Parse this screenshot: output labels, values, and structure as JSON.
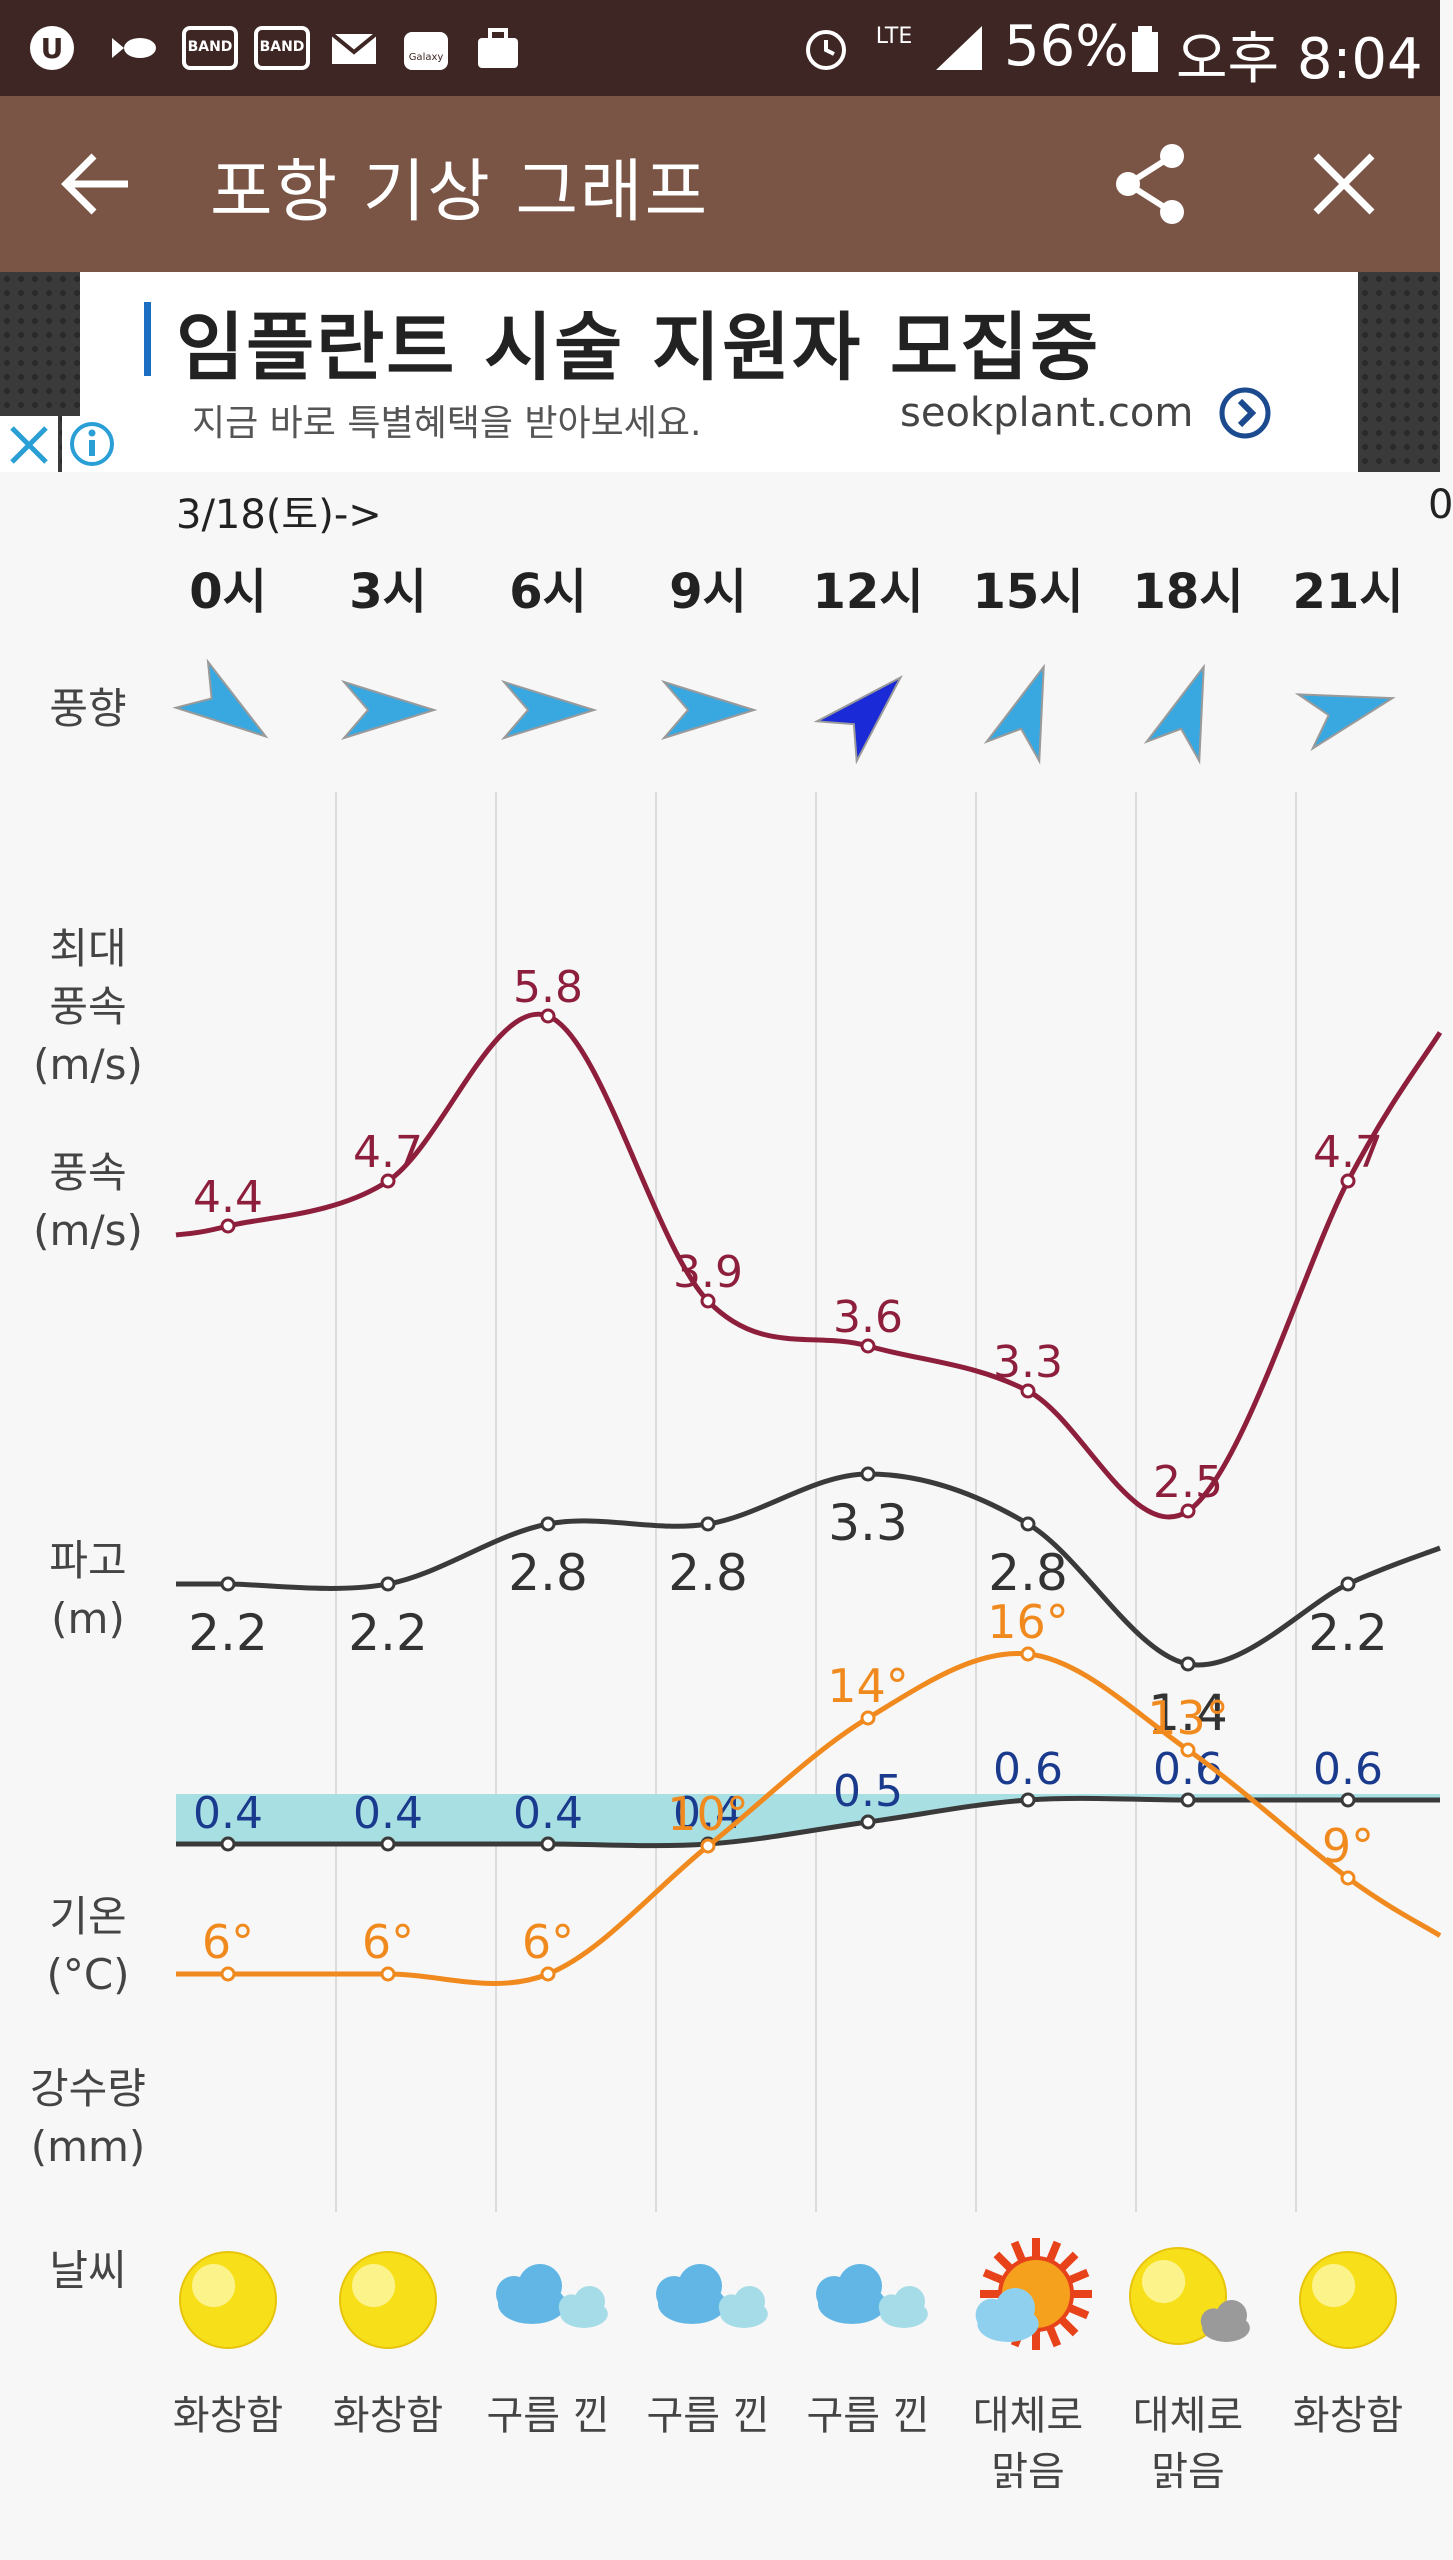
{
  "status_bar": {
    "battery_percent": "56%",
    "time": "오후 8:04",
    "network": "LTE",
    "band_label": "BAND",
    "galaxy_label": "Galaxy"
  },
  "app_bar": {
    "title": "포항 기상 그래프"
  },
  "ad": {
    "headline": "임플란트 시술 지원자 모집중",
    "subtext": "지금 바로 특별혜택을 받아보세요.",
    "domain": "seokplant.com"
  },
  "row_labels": {
    "wind_direction": "풍향",
    "max_wind": [
      "최대",
      "풍속",
      "(m/s)"
    ],
    "wind": [
      "풍속",
      "(m/s)"
    ],
    "wave": [
      "파고",
      "(m)"
    ],
    "temperature": [
      "기온",
      "(°C)"
    ],
    "precip": [
      "강수량",
      "(mm)"
    ],
    "weather": "날씨"
  },
  "colors": {
    "max_wind": "#8e1f3c",
    "wind": "#3a3a3a",
    "wave_fill": "#a8dfe3",
    "wave_label": "#1a3a8e",
    "temperature": "#f08a1e",
    "appbar": "#7a5546",
    "statusbar": "#3d2623"
  },
  "chart_data": {
    "type": "line",
    "date_label": "3/18(토)->",
    "next_date_partial": "0",
    "hours": [
      "0시",
      "3시",
      "6시",
      "9시",
      "12시",
      "15시",
      "18시",
      "21시"
    ],
    "wind_direction_icons": [
      "arrow-icon",
      "arrow-icon",
      "arrow-icon",
      "arrow-icon",
      "arrow-icon",
      "arrow-icon",
      "arrow-icon",
      "arrow-icon"
    ],
    "wind_direction_degrees": [
      -35,
      0,
      0,
      0,
      45,
      70,
      70,
      15
    ],
    "max_wind_speed": [
      4.4,
      4.7,
      5.8,
      3.9,
      3.6,
      3.3,
      2.5,
      4.7
    ],
    "wind_speed": [
      2.2,
      2.2,
      2.8,
      2.8,
      3.3,
      2.8,
      1.4,
      2.2
    ],
    "wave_height": [
      0.4,
      0.4,
      0.4,
      0.4,
      0.5,
      0.6,
      0.6,
      0.6
    ],
    "temperature": [
      6,
      6,
      6,
      10,
      14,
      16,
      13,
      9
    ],
    "temp_unit_mark": "°",
    "weather_icons": [
      "sun-icon",
      "sun-icon",
      "cloud-icon",
      "cloud-icon",
      "cloud-icon",
      "sun-cloud-icon",
      "sun-cloud-icon",
      "sun-icon"
    ],
    "weather_text": [
      [
        "화창함"
      ],
      [
        "화창함"
      ],
      [
        "구름 낀"
      ],
      [
        "구름 낀"
      ],
      [
        "구름 낀"
      ],
      [
        "대체로",
        "맑음"
      ],
      [
        "대체로",
        "맑음"
      ],
      [
        "화창함"
      ]
    ]
  }
}
